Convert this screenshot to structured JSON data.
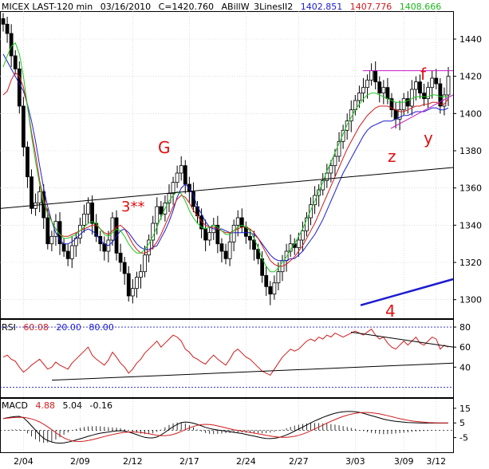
{
  "header": {
    "symbol": "MICEX LAST-120 min",
    "date": "03/16/2010",
    "close": "C=1420.760",
    "indicator": "ABillW_3LinesII2",
    "blue_value": "1402.851",
    "red_value": "1407.776",
    "green_value": "1408.666"
  },
  "colors": {
    "blue": "#1c1cd0",
    "red": "#d01c1c",
    "green": "#1cc81c",
    "magenta": "#c81cc8",
    "annotation": "#e01010",
    "grid": "#c8c8c8"
  },
  "annotations": {
    "g": "G",
    "three": "3**",
    "f": "f",
    "z": "z",
    "y": "y",
    "four": "4"
  },
  "rsi": {
    "label": "RSI",
    "value": "60.08",
    "lower": "20.00",
    "upper": "80.00"
  },
  "macd": {
    "label": "MACD",
    "value": "4.88",
    "signal": "5.04",
    "hist": "-0.16"
  },
  "chart_data": [
    {
      "type": "candlestick",
      "title": "MICEX LAST-120 min",
      "x_ticks": [
        "2/04",
        "2/09",
        "2/12",
        "2/17",
        "2/24",
        "2/27",
        "3/03",
        "3/09",
        "3/12"
      ],
      "y_ticks": [
        1300,
        1320,
        1340,
        1360,
        1380,
        1400,
        1420,
        1440
      ],
      "ylim": [
        1290,
        1455
      ],
      "close": [
        1448,
        1443,
        1431,
        1424,
        1404,
        1382,
        1366,
        1349,
        1352,
        1358,
        1344,
        1330,
        1334,
        1342,
        1330,
        1326,
        1322,
        1329,
        1333,
        1340,
        1346,
        1352,
        1341,
        1334,
        1330,
        1326,
        1332,
        1344,
        1325,
        1320,
        1314,
        1302,
        1306,
        1312,
        1315,
        1324,
        1332,
        1341,
        1350,
        1346,
        1352,
        1357,
        1363,
        1368,
        1372,
        1362,
        1358,
        1350,
        1345,
        1338,
        1332,
        1336,
        1340,
        1330,
        1326,
        1322,
        1331,
        1340,
        1344,
        1339,
        1334,
        1332,
        1327,
        1322,
        1313,
        1307,
        1303,
        1309,
        1315,
        1321,
        1326,
        1330,
        1328,
        1332,
        1337,
        1344,
        1351,
        1356,
        1359,
        1364,
        1368,
        1372,
        1377,
        1385,
        1391,
        1396,
        1402,
        1407,
        1411,
        1414,
        1418,
        1423,
        1417,
        1411,
        1414,
        1408,
        1402,
        1397,
        1402,
        1408,
        1404,
        1413,
        1417,
        1411,
        1408,
        1414,
        1419,
        1416,
        1404,
        1410,
        1420
      ],
      "ma_blue": [
        1432,
        1428,
        1424,
        1420,
        1416,
        1412,
        1405,
        1396,
        1385,
        1372,
        1360,
        1350,
        1342,
        1336,
        1332,
        1330,
        1330,
        1331,
        1333,
        1335,
        1337,
        1338,
        1337,
        1335,
        1332,
        1330,
        1329,
        1331,
        1334,
        1337,
        1338,
        1336,
        1333,
        1330,
        1328,
        1327,
        1327,
        1328,
        1329,
        1333,
        1337,
        1342,
        1348,
        1355,
        1360,
        1362,
        1360,
        1356,
        1350,
        1346,
        1342,
        1339,
        1338,
        1338,
        1338,
        1337,
        1336,
        1336,
        1336,
        1336,
        1336,
        1336,
        1335,
        1333,
        1330,
        1327,
        1324,
        1322,
        1321,
        1321,
        1321,
        1322,
        1322,
        1324,
        1326,
        1329,
        1332,
        1335,
        1339,
        1343,
        1348,
        1353,
        1358,
        1363,
        1368,
        1372,
        1376,
        1380,
        1384,
        1388,
        1391,
        1393,
        1394,
        1395,
        1396,
        1396,
        1396,
        1397,
        1398,
        1399,
        1399,
        1400,
        1401,
        1401,
        1401,
        1402,
        1403,
        1403,
        1402,
        1402,
        1403
      ],
      "ma_red": [
        1410,
        1412,
        1418,
        1422,
        1420,
        1414,
        1404,
        1390,
        1378,
        1364,
        1354,
        1347,
        1342,
        1338,
        1335,
        1334,
        1334,
        1335,
        1336,
        1337,
        1338,
        1339,
        1340,
        1340,
        1338,
        1336,
        1335,
        1337,
        1339,
        1340,
        1338,
        1334,
        1330,
        1327,
        1325,
        1325,
        1326,
        1328,
        1331,
        1335,
        1340,
        1345,
        1350,
        1354,
        1356,
        1355,
        1352,
        1348,
        1345,
        1342,
        1340,
        1339,
        1339,
        1338,
        1337,
        1336,
        1336,
        1337,
        1338,
        1339,
        1339,
        1338,
        1336,
        1333,
        1329,
        1325,
        1321,
        1319,
        1318,
        1318,
        1319,
        1321,
        1323,
        1326,
        1329,
        1333,
        1337,
        1341,
        1346,
        1351,
        1356,
        1361,
        1366,
        1371,
        1376,
        1381,
        1385,
        1389,
        1393,
        1396,
        1399,
        1401,
        1403,
        1404,
        1404,
        1404,
        1403,
        1402,
        1401,
        1401,
        1402,
        1403,
        1404,
        1404,
        1405,
        1405,
        1406,
        1406,
        1405,
        1405,
        1408
      ],
      "ma_green": [
        1425,
        1431,
        1436,
        1438,
        1432,
        1420,
        1404,
        1388,
        1374,
        1362,
        1352,
        1346,
        1342,
        1338,
        1335,
        1333,
        1333,
        1334,
        1335,
        1337,
        1339,
        1341,
        1342,
        1341,
        1338,
        1335,
        1334,
        1336,
        1338,
        1337,
        1334,
        1330,
        1327,
        1325,
        1325,
        1327,
        1330,
        1334,
        1339,
        1344,
        1349,
        1353,
        1356,
        1358,
        1357,
        1353,
        1348,
        1344,
        1341,
        1339,
        1338,
        1339,
        1340,
        1339,
        1337,
        1335,
        1335,
        1337,
        1339,
        1340,
        1339,
        1337,
        1333,
        1328,
        1322,
        1318,
        1315,
        1315,
        1317,
        1320,
        1323,
        1327,
        1330,
        1334,
        1338,
        1343,
        1348,
        1353,
        1358,
        1363,
        1369,
        1374,
        1379,
        1384,
        1389,
        1394,
        1398,
        1402,
        1405,
        1408,
        1410,
        1411,
        1411,
        1410,
        1409,
        1408,
        1407,
        1406,
        1406,
        1406,
        1407,
        1408,
        1409,
        1409,
        1409,
        1409,
        1410,
        1410,
        1409,
        1409,
        1409
      ]
    },
    {
      "type": "line",
      "title": "RSI",
      "y_ticks": [
        40,
        60,
        80
      ],
      "ylim": [
        10,
        88
      ],
      "values": [
        50,
        52,
        48,
        46,
        40,
        35,
        38,
        42,
        45,
        48,
        43,
        38,
        40,
        45,
        42,
        40,
        38,
        44,
        48,
        52,
        56,
        60,
        52,
        48,
        45,
        42,
        47,
        55,
        50,
        44,
        40,
        34,
        38,
        44,
        48,
        54,
        58,
        62,
        66,
        60,
        64,
        68,
        72,
        70,
        66,
        58,
        55,
        50,
        48,
        45,
        43,
        48,
        52,
        48,
        45,
        42,
        48,
        55,
        58,
        54,
        50,
        48,
        44,
        40,
        36,
        34,
        32,
        38,
        44,
        50,
        54,
        58,
        56,
        58,
        62,
        66,
        68,
        66,
        70,
        68,
        72,
        70,
        74,
        72,
        70,
        72,
        74,
        76,
        74,
        72,
        75,
        78,
        72,
        68,
        70,
        64,
        60,
        58,
        62,
        66,
        62,
        66,
        70,
        64,
        62,
        66,
        70,
        68,
        58,
        62,
        60
      ]
    },
    {
      "type": "line",
      "title": "MACD",
      "y_ticks": [
        -5,
        5,
        15
      ],
      "ylim": [
        -15,
        22
      ],
      "values": [
        8,
        8.5,
        9,
        9.4,
        9.5,
        8.5,
        6,
        3,
        0,
        -3,
        -5.5,
        -7,
        -8,
        -8.6,
        -8.8,
        -8.6,
        -8.1,
        -7.4,
        -6.6,
        -5.8,
        -5,
        -4.1,
        -3.4,
        -2.6,
        -2,
        -1.6,
        -1.2,
        -0.8,
        -0.4,
        -0.3,
        -0.6,
        -1.2,
        -2,
        -3,
        -4,
        -4.8,
        -5.2,
        -5.2,
        -4.6,
        -3.2,
        -1.4,
        0.6,
        2.4,
        4,
        5.2,
        5.6,
        5.4,
        4.8,
        4,
        3,
        2,
        1.2,
        0.6,
        0.2,
        -0.2,
        -0.6,
        -1,
        -1.4,
        -1.8,
        -2.2,
        -2.8,
        -3.4,
        -4,
        -4.6,
        -5.2,
        -5.6,
        -5.7,
        -5.5,
        -5,
        -4.2,
        -3.2,
        -2,
        -0.6,
        0.8,
        2.2,
        3.6,
        5,
        6.4,
        7.6,
        8.8,
        9.8,
        10.8,
        11.6,
        12.2,
        12.6,
        12.8,
        12.8,
        12.6,
        12.2,
        11.6,
        10.8,
        10,
        9.2,
        8.4,
        7.6,
        7,
        6.5,
        6.1,
        5.8,
        5.5,
        5.3,
        5.2,
        5.1,
        5,
        4.9,
        4.9,
        4.9,
        4.9,
        4.9,
        4.9,
        4.9
      ]
    }
  ]
}
